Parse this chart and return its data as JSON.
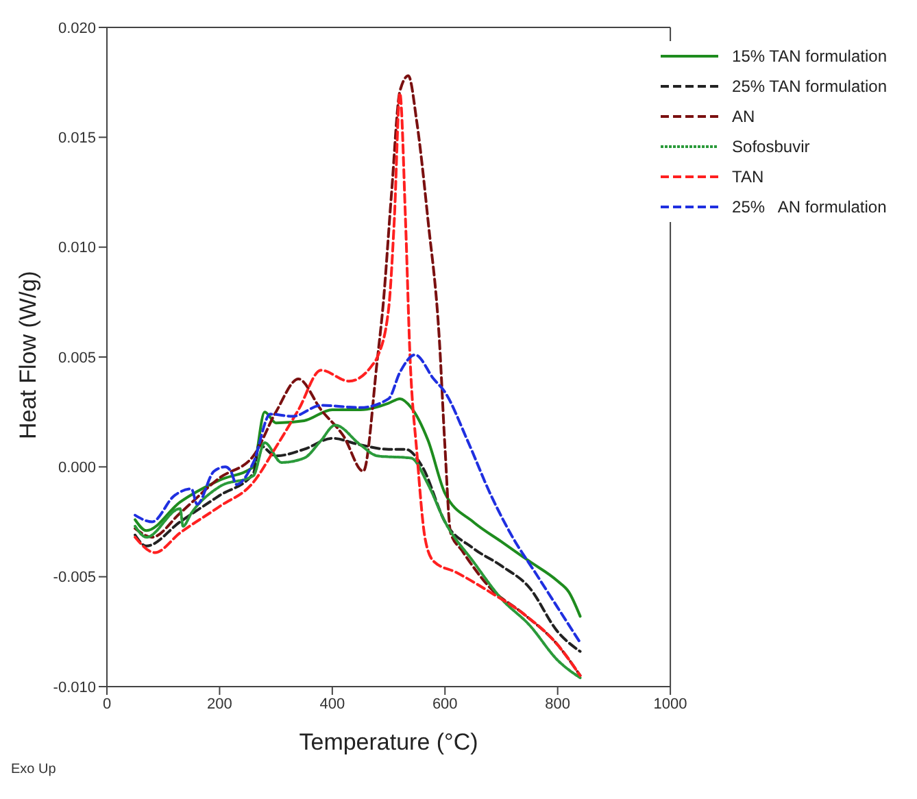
{
  "chart_data": {
    "type": "line",
    "xlabel": "Temperature (°C)",
    "ylabel": "Heat Flow (W/g)",
    "annotations": [
      "Exo Up"
    ],
    "xlim": [
      0,
      1000
    ],
    "xticks": [
      0,
      200,
      400,
      600,
      800,
      1000
    ],
    "ylim": [
      -0.01,
      0.02
    ],
    "yticks": [
      {
        "value": -0.01,
        "label": "-0.010"
      },
      {
        "value": -0.005,
        "label": "-0.005"
      },
      {
        "value": 0,
        "label": "0.000"
      },
      {
        "value": 0.005,
        "label": "0.005"
      },
      {
        "value": 0.01,
        "label": "0.010"
      },
      {
        "value": 0.015,
        "label": "0.015"
      },
      {
        "value": 0.02,
        "label": "0.020"
      }
    ],
    "legend": "top right",
    "marker": "none",
    "series": [
      {
        "name": "15% TAN formulation",
        "color": "#1e8c1e",
        "line_style": "solid",
        "x": [
          50,
          70,
          130,
          200,
          260,
          280,
          300,
          350,
          400,
          450,
          500,
          520,
          540,
          570,
          600,
          650,
          700,
          750,
          800,
          820,
          840
        ],
        "values": [
          -0.0024,
          -0.0029,
          -0.0016,
          -0.0006,
          0.0,
          0.0025,
          0.002,
          0.0021,
          0.0026,
          0.0026,
          0.0029,
          0.0031,
          0.0027,
          0.0012,
          -0.0012,
          -0.0025,
          -0.0034,
          -0.0043,
          -0.0052,
          -0.0057,
          -0.0068
        ]
      },
      {
        "name": "25% TAN formulation",
        "color": "#222222",
        "line_style": "dashed",
        "x": [
          50,
          70,
          130,
          200,
          260,
          270,
          300,
          350,
          400,
          450,
          500,
          530,
          560,
          600,
          650,
          700,
          750,
          800,
          840
        ],
        "values": [
          -0.0031,
          -0.0036,
          -0.0025,
          -0.0013,
          -0.0003,
          0.001,
          0.0005,
          0.0008,
          0.0013,
          0.001,
          0.0008,
          0.0008,
          0.0,
          -0.0025,
          -0.0037,
          -0.0045,
          -0.0055,
          -0.0075,
          -0.0084
        ]
      },
      {
        "name": "AN",
        "color": "#7a1010",
        "line_style": "dashed",
        "x": [
          50,
          80,
          130,
          200,
          260,
          300,
          340,
          380,
          420,
          455,
          480,
          490,
          505,
          520,
          535,
          550,
          570,
          590,
          600,
          610,
          630,
          680,
          740,
          800,
          840
        ],
        "values": [
          -0.0028,
          -0.0032,
          -0.0021,
          -0.0005,
          0.0005,
          0.0025,
          0.004,
          0.0026,
          0.0014,
          -0.0002,
          0.0049,
          0.0073,
          0.0124,
          0.0171,
          0.0178,
          0.0157,
          0.0112,
          0.0058,
          0.0009,
          -0.003,
          -0.0038,
          -0.0055,
          -0.0067,
          -0.0081,
          -0.0095
        ]
      },
      {
        "name": "Sofosbuvir",
        "color": "#2a9a3a",
        "line_style": "dotted",
        "x": [
          50,
          70,
          130,
          135,
          150,
          200,
          260,
          280,
          310,
          350,
          380,
          405,
          450,
          480,
          540,
          570,
          600,
          650,
          700,
          750,
          800,
          840
        ],
        "values": [
          -0.0027,
          -0.0032,
          -0.0019,
          -0.0027,
          -0.0021,
          -0.0009,
          -0.0004,
          0.0011,
          0.0002,
          0.0004,
          0.0012,
          0.0019,
          0.001,
          0.0005,
          0.0004,
          -0.0008,
          -0.0025,
          -0.0043,
          -0.006,
          -0.0072,
          -0.0088,
          -0.0096
        ]
      },
      {
        "name": "TAN",
        "color": "#ff2020",
        "line_style": "dashed",
        "x": [
          50,
          85,
          130,
          200,
          260,
          300,
          340,
          380,
          430,
          470,
          480,
          500,
          510,
          520,
          530,
          538,
          550,
          565,
          580,
          620,
          680,
          740,
          800,
          840
        ],
        "values": [
          -0.0032,
          -0.0039,
          -0.003,
          -0.0018,
          -0.0007,
          0.0009,
          0.0026,
          0.0044,
          0.0039,
          0.0046,
          0.005,
          0.0072,
          0.0112,
          0.017,
          0.0112,
          0.005,
          0.0007,
          -0.0033,
          -0.0043,
          -0.0048,
          -0.0057,
          -0.0067,
          -0.0081,
          -0.0095
        ]
      },
      {
        "name": "25%   AN formulation",
        "color": "#1f2fe0",
        "line_style": "dashed",
        "x": [
          50,
          80,
          120,
          150,
          160,
          190,
          210,
          220,
          230,
          260,
          290,
          330,
          380,
          450,
          500,
          520,
          547,
          580,
          600,
          640,
          680,
          720,
          760,
          800,
          840
        ],
        "values": [
          -0.0022,
          -0.0025,
          -0.0013,
          -0.001,
          -0.0017,
          -0.0002,
          0.0,
          -0.0002,
          -0.0008,
          0.0002,
          0.0024,
          0.0023,
          0.0028,
          0.0027,
          0.0031,
          0.0043,
          0.0051,
          0.004,
          0.0034,
          0.0012,
          -0.0012,
          -0.0032,
          -0.0048,
          -0.0064,
          -0.008
        ]
      }
    ]
  }
}
